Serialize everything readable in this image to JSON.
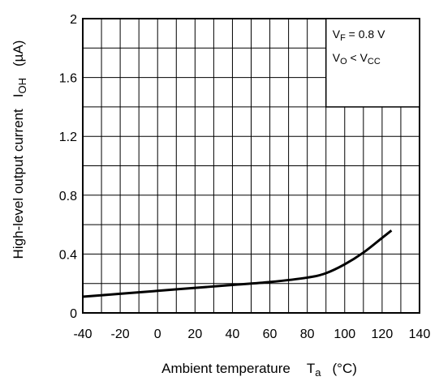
{
  "chart_data": {
    "type": "line",
    "xlabel": "Ambient temperature",
    "xlabel_symbol": "T",
    "xlabel_symbol_sub": "a",
    "xlabel_unit": "(°C)",
    "ylabel": "High-level output current",
    "ylabel_symbol": "I",
    "ylabel_symbol_sub": "OH",
    "ylabel_unit": "(µA)",
    "xlim": [
      -40,
      140
    ],
    "ylim": [
      0,
      2
    ],
    "x_ticks": [
      -40,
      -20,
      0,
      20,
      40,
      60,
      80,
      100,
      120,
      140
    ],
    "y_ticks": [
      0,
      0.4,
      0.8,
      1.2,
      1.6,
      2
    ],
    "y_tick_labels": [
      "0",
      "0.4",
      "0.8",
      "1.2",
      "1.6",
      "2"
    ],
    "x_minor_step": 10,
    "y_minor_step": 0.2,
    "grid": true,
    "legend_box": {
      "position": "top-right",
      "line1": {
        "main": "V",
        "sub": "F",
        "rest": " = 0.8 V"
      },
      "line2": {
        "main": "V",
        "sub": "O",
        "rest": " < V",
        "sub2": "CC"
      }
    },
    "series": [
      {
        "x": [
          -40,
          -20,
          0,
          20,
          40,
          60,
          80,
          90,
          100,
          110,
          120,
          125
        ],
        "y": [
          0.11,
          0.13,
          0.15,
          0.17,
          0.19,
          0.21,
          0.24,
          0.27,
          0.33,
          0.41,
          0.51,
          0.56
        ]
      }
    ]
  }
}
